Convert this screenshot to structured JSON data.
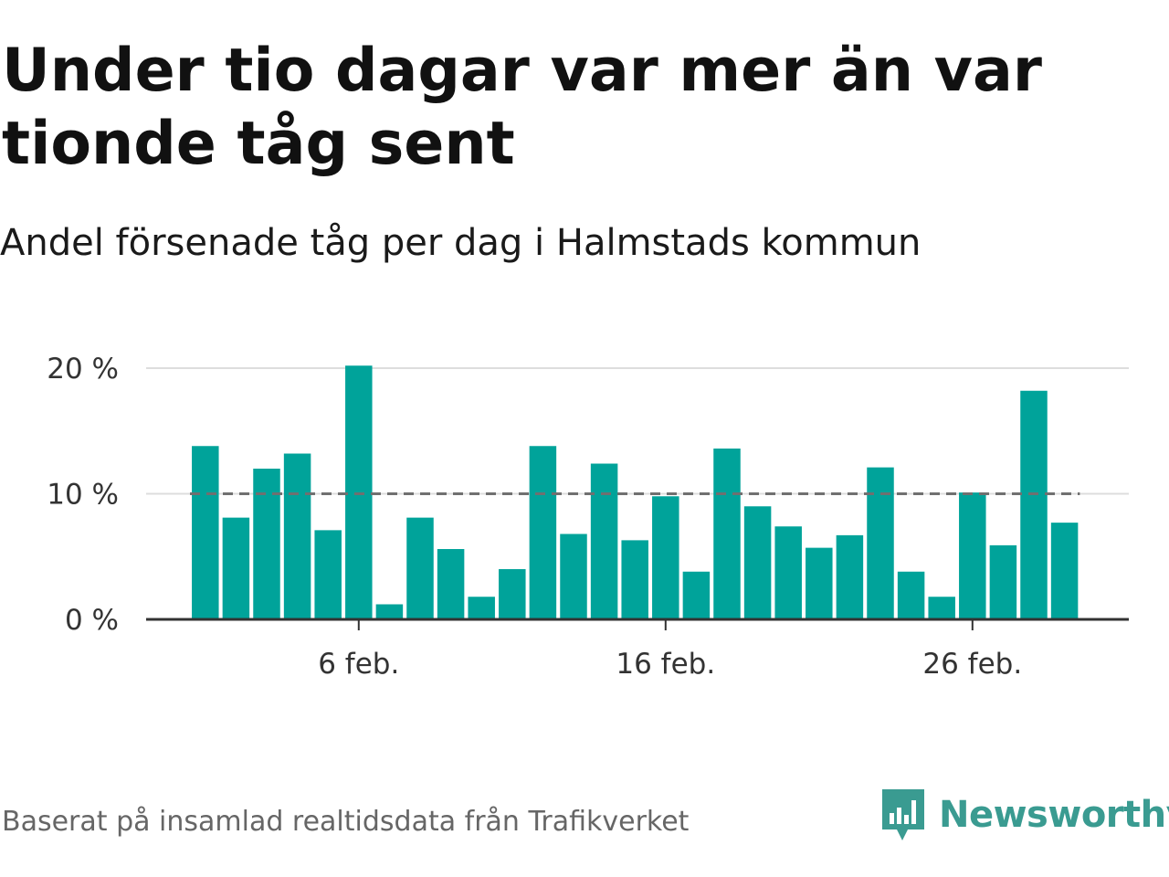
{
  "title": "Under tio dagar var mer än var tionde tåg sent",
  "subtitle": "Andel försenade tåg per dag i Halmstads kommun",
  "footer": "Baserat på insamlad realtidsdata från Trafikverket",
  "brand": {
    "name": "Newsworthy",
    "color": "#3a9b91",
    "icon": "newsworthy-logo-icon"
  },
  "colors": {
    "bar": "#00a39a",
    "reference_line": "#707070",
    "grid": "#dddddd",
    "axis": "#333333"
  },
  "chart_data": {
    "type": "bar",
    "categories": [
      "1 feb.",
      "2 feb.",
      "3 feb.",
      "4 feb.",
      "5 feb.",
      "6 feb.",
      "7 feb.",
      "8 feb.",
      "9 feb.",
      "10 feb.",
      "11 feb.",
      "12 feb.",
      "13 feb.",
      "14 feb.",
      "15 feb.",
      "16 feb.",
      "17 feb.",
      "18 feb.",
      "19 feb.",
      "20 feb.",
      "21 feb.",
      "22 feb.",
      "23 feb.",
      "24 feb.",
      "25 feb.",
      "26 feb.",
      "27 feb.",
      "28 feb.",
      "29 feb."
    ],
    "values": [
      13.8,
      8.1,
      12.0,
      13.2,
      7.1,
      20.2,
      1.2,
      8.1,
      5.6,
      1.8,
      4.0,
      13.8,
      6.8,
      12.4,
      6.3,
      9.8,
      3.8,
      13.6,
      9.0,
      7.4,
      5.7,
      6.7,
      12.1,
      3.8,
      1.8,
      10.1,
      5.9,
      18.2,
      7.7
    ],
    "xticks": [
      "6 feb.",
      "16 feb.",
      "26 feb."
    ],
    "yticks": [
      "0 %",
      "10 %",
      "20 %"
    ],
    "ylim": [
      0,
      20
    ],
    "reference_value": 10,
    "grid": true
  }
}
